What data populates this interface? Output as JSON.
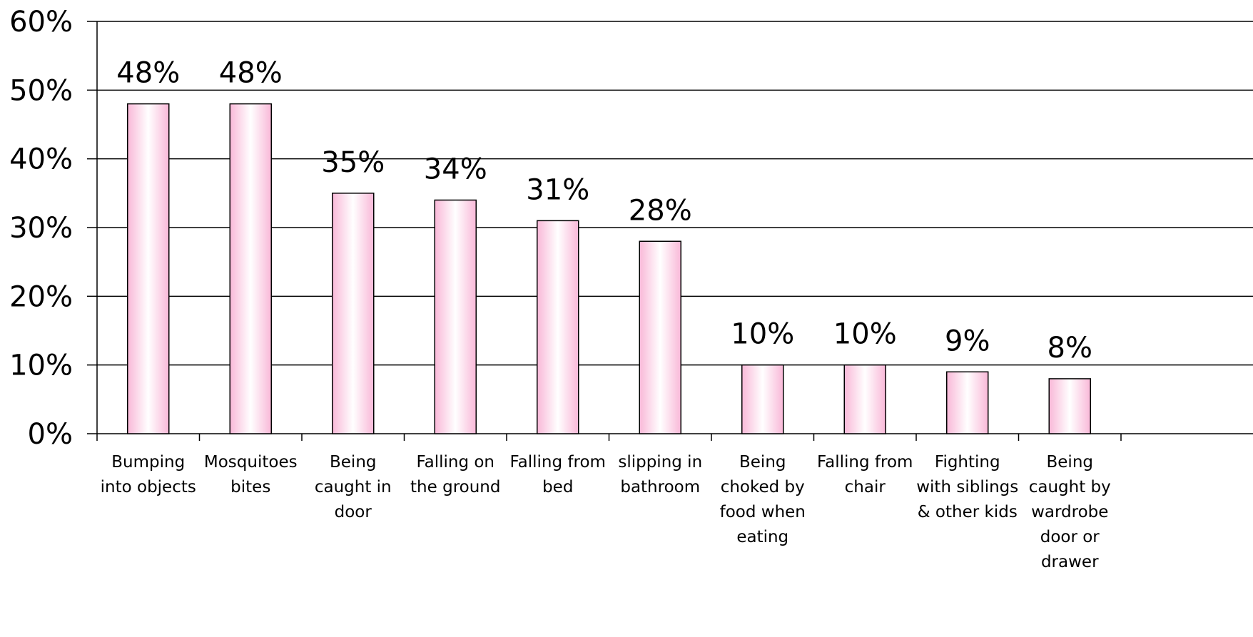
{
  "chart_data": {
    "type": "bar",
    "title": "",
    "xlabel": "",
    "ylabel": "",
    "ylim": [
      0,
      0.6
    ],
    "grid": true,
    "legend": "none",
    "bar_color": "#f9b8d8",
    "bar_highlight": "#ffffff",
    "yticks": [
      {
        "value": 0,
        "label": "0%"
      },
      {
        "value": 0.1,
        "label": "10%"
      },
      {
        "value": 0.2,
        "label": "20%"
      },
      {
        "value": 0.3,
        "label": "30%"
      },
      {
        "value": 0.4,
        "label": "40%"
      },
      {
        "value": 0.5,
        "label": "50%"
      },
      {
        "value": 0.6,
        "label": "60%"
      }
    ],
    "categories": [
      [
        "Bumping",
        "into objects"
      ],
      [
        "Mosquitoes",
        "bites"
      ],
      [
        "Being",
        "caught in",
        "door"
      ],
      [
        "Falling on",
        "the ground"
      ],
      [
        "Falling from",
        "bed"
      ],
      [
        "slipping in",
        "bathroom"
      ],
      [
        "Being",
        "choked by",
        "food when",
        "eating"
      ],
      [
        "Falling from",
        "chair"
      ],
      [
        "Fighting",
        "with siblings",
        "& other kids"
      ],
      [
        "Being",
        "caught by",
        "wardrobe",
        "door or",
        "drawer"
      ]
    ],
    "values": [
      0.48,
      0.48,
      0.35,
      0.34,
      0.31,
      0.28,
      0.1,
      0.1,
      0.09,
      0.08
    ],
    "data_labels": [
      "48%",
      "48%",
      "35%",
      "34%",
      "31%",
      "28%",
      "10%",
      "10%",
      "9%",
      "8%"
    ]
  }
}
